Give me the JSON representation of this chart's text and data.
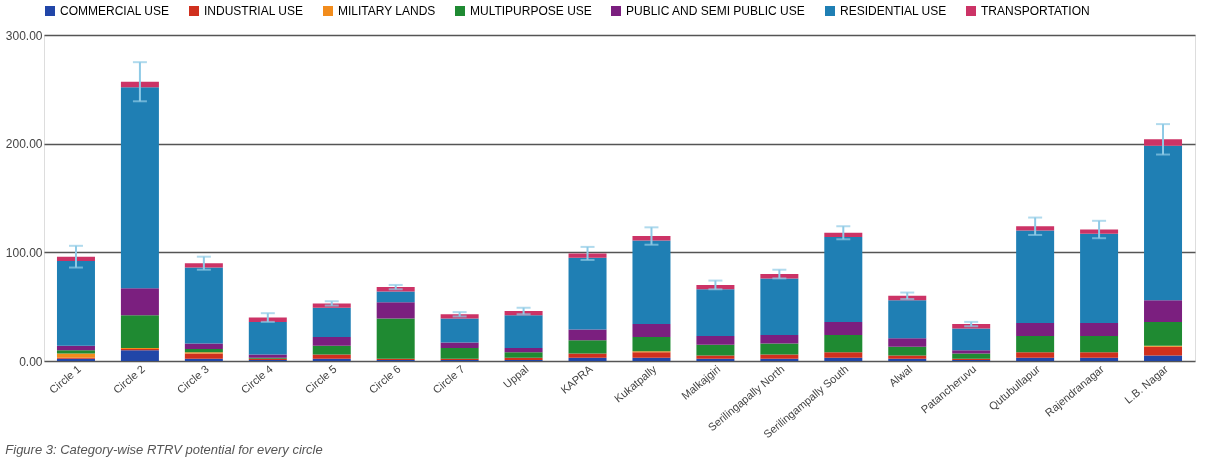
{
  "chart_data": {
    "type": "bar",
    "stacked": true,
    "categories": [
      "Circle 1",
      "Circle 2",
      "Circle 3",
      "Circle 4",
      "Circle 5",
      "Circle 6",
      "Circle 7",
      "Uppal",
      "KAPRA",
      "Kukatpally",
      "Malkajgiri",
      "Serilingapally North",
      "Serilingampally South",
      "Alwal",
      "Patancheruvu",
      "Qutubullapur",
      "Rajendranagar",
      "L.B. Nagar"
    ],
    "series": [
      {
        "name": "COMMERCIAL USE",
        "color": "#2146a8",
        "values": [
          2,
          10,
          2,
          1,
          2,
          1,
          1,
          1,
          3,
          3,
          2,
          2,
          3,
          2,
          1,
          3,
          3,
          5
        ]
      },
      {
        "name": "INDUSTRIAL USE",
        "color": "#d0301e",
        "values": [
          1,
          1,
          5,
          1,
          4,
          1,
          1,
          2,
          4,
          5,
          3,
          4,
          5,
          3,
          1,
          5,
          5,
          8
        ]
      },
      {
        "name": "MILITARY LANDS",
        "color": "#f28c1c",
        "values": [
          4,
          1,
          1,
          0,
          0,
          0,
          0,
          0,
          0,
          1,
          0,
          0,
          0,
          0,
          0,
          0,
          0,
          1
        ]
      },
      {
        "name": "MULTIPURPOSE USE",
        "color": "#1f8a32",
        "values": [
          3,
          30,
          3,
          1,
          8,
          37,
          10,
          5,
          12,
          13,
          10,
          10,
          16,
          8,
          5,
          15,
          15,
          22
        ]
      },
      {
        "name": "PUBLIC AND SEMI PUBLIC USE",
        "color": "#7b1f7f",
        "values": [
          4,
          25,
          5,
          3,
          8,
          15,
          5,
          4,
          10,
          12,
          8,
          8,
          12,
          8,
          3,
          12,
          12,
          20
        ]
      },
      {
        "name": "RESIDENTIAL USE",
        "color": "#1f7fb4",
        "values": [
          78,
          185,
          70,
          30,
          27,
          10,
          22,
          30,
          66,
          77,
          43,
          52,
          78,
          35,
          20,
          85,
          82,
          142
        ]
      },
      {
        "name": "TRANSPORTATION",
        "color": "#cc3366",
        "values": [
          4,
          5,
          4,
          4,
          4,
          4,
          4,
          4,
          4,
          4,
          4,
          4,
          4,
          4,
          4,
          4,
          4,
          6
        ],
        "errors": [
          10,
          18,
          6,
          4,
          2,
          2,
          2,
          3,
          6,
          8,
          4,
          4,
          6,
          3,
          2,
          8,
          8,
          14
        ]
      }
    ],
    "ylim": [
      0,
      300
    ],
    "yticks": [
      {
        "value": 0,
        "label": "0.00"
      },
      {
        "value": 100,
        "label": "100.00"
      },
      {
        "value": 200,
        "label": "200.00"
      },
      {
        "value": 300,
        "label": "300.00"
      }
    ],
    "grid": "y",
    "legend": "top",
    "annotations": [
      "Figure 3: Category-wise RTRV potential for every circle"
    ]
  }
}
